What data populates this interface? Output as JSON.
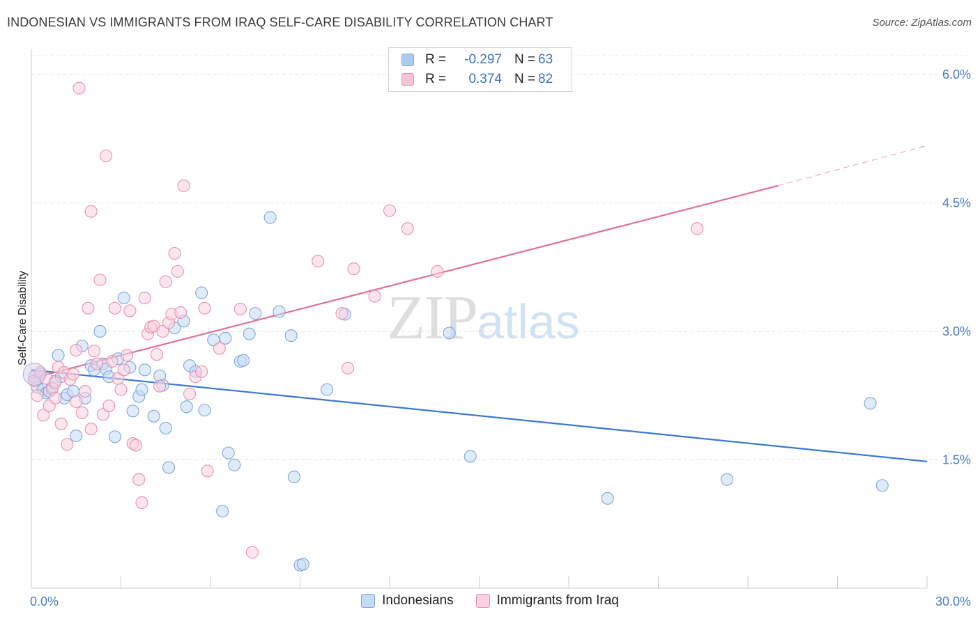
{
  "title": "INDONESIAN VS IMMIGRANTS FROM IRAQ SELF-CARE DISABILITY CORRELATION CHART",
  "source": "Source: ZipAtlas.com",
  "watermark": {
    "zip": "ZIP",
    "atlas": "atlas"
  },
  "legend": {
    "rows": [
      {
        "r_label": "R =",
        "r_value": "-0.297",
        "n_label": "N =",
        "n_value": "63",
        "color": "#aecbf2",
        "border": "#7aa6e0"
      },
      {
        "r_label": "R =",
        "r_value": "0.374",
        "n_label": "N =",
        "n_value": "82",
        "color": "#f7c4d4",
        "border": "#e98fae"
      }
    ]
  },
  "bottom_legend": [
    {
      "label": "Indonesians",
      "color": "#c6dbf6",
      "border": "#7aa6e0"
    },
    {
      "label": "Immigrants from Iraq",
      "color": "#fad2df",
      "border": "#e98fae"
    }
  ],
  "chart_data": {
    "type": "scatter",
    "ylabel": "Self-Care Disability",
    "x_tick_labels": [
      "0.0%",
      "30.0%"
    ],
    "y_tick_labels": [
      "1.5%",
      "3.0%",
      "4.5%",
      "6.0%"
    ],
    "xlim": [
      0,
      30
    ],
    "ylim": [
      0,
      6.3
    ],
    "y_ticks": [
      1.5,
      3.0,
      4.5,
      6.0
    ],
    "grid": "horizontal dashed",
    "legend_placement": "top-center",
    "series": [
      {
        "name": "Indonesians",
        "color": "#7aa6e0",
        "fill": "#c6dbf6",
        "trend": {
          "x": [
            0,
            30
          ],
          "y": [
            2.55,
            1.48
          ],
          "color": "#3a78d0"
        },
        "points": [
          [
            0.1,
            2.47
          ],
          [
            0.2,
            2.35
          ],
          [
            0.3,
            2.5
          ],
          [
            0.4,
            2.32
          ],
          [
            0.5,
            2.28
          ],
          [
            0.6,
            2.3
          ],
          [
            0.7,
            2.35
          ],
          [
            0.8,
            2.42
          ],
          [
            0.9,
            2.72
          ],
          [
            1.0,
            2.47
          ],
          [
            1.1,
            2.22
          ],
          [
            1.2,
            2.26
          ],
          [
            1.4,
            2.3
          ],
          [
            1.5,
            1.78
          ],
          [
            1.7,
            2.83
          ],
          [
            1.8,
            2.22
          ],
          [
            2.0,
            2.6
          ],
          [
            2.1,
            2.55
          ],
          [
            2.3,
            3.0
          ],
          [
            2.4,
            2.62
          ],
          [
            2.5,
            2.56
          ],
          [
            2.6,
            2.47
          ],
          [
            2.8,
            1.77
          ],
          [
            2.9,
            2.68
          ],
          [
            3.1,
            3.39
          ],
          [
            3.3,
            2.58
          ],
          [
            3.4,
            2.07
          ],
          [
            3.6,
            2.24
          ],
          [
            3.7,
            2.32
          ],
          [
            3.8,
            2.55
          ],
          [
            4.1,
            2.01
          ],
          [
            4.3,
            2.48
          ],
          [
            4.4,
            2.37
          ],
          [
            4.5,
            1.87
          ],
          [
            4.6,
            1.41
          ],
          [
            4.8,
            3.04
          ],
          [
            5.1,
            3.12
          ],
          [
            5.2,
            2.12
          ],
          [
            5.3,
            2.6
          ],
          [
            5.5,
            2.53
          ],
          [
            5.7,
            3.45
          ],
          [
            5.8,
            2.08
          ],
          [
            6.1,
            2.9
          ],
          [
            6.4,
            0.9
          ],
          [
            6.5,
            2.92
          ],
          [
            6.6,
            1.58
          ],
          [
            6.8,
            1.44
          ],
          [
            7.0,
            2.65
          ],
          [
            7.1,
            2.66
          ],
          [
            7.3,
            2.97
          ],
          [
            7.5,
            3.21
          ],
          [
            8.0,
            4.33
          ],
          [
            8.3,
            3.23
          ],
          [
            8.7,
            2.95
          ],
          [
            8.8,
            1.3
          ],
          [
            9.0,
            0.27
          ],
          [
            9.1,
            0.28
          ],
          [
            9.9,
            2.32
          ],
          [
            10.5,
            3.2
          ],
          [
            14.0,
            2.98
          ],
          [
            14.7,
            1.54
          ],
          [
            19.3,
            1.05
          ],
          [
            23.3,
            1.27
          ],
          [
            28.1,
            2.16
          ],
          [
            28.5,
            1.2
          ]
        ]
      },
      {
        "name": "Immigrants from Iraq",
        "color": "#e98fae",
        "fill": "#fad2df",
        "trend": {
          "x": [
            0,
            25
          ],
          "y": [
            2.45,
            4.7
          ],
          "color": "#e07098",
          "dashed_to": [
            30,
            5.17
          ]
        },
        "points": [
          [
            0.1,
            2.42
          ],
          [
            0.2,
            2.25
          ],
          [
            0.3,
            2.52
          ],
          [
            0.4,
            2.02
          ],
          [
            0.5,
            2.45
          ],
          [
            0.6,
            2.13
          ],
          [
            0.7,
            2.33
          ],
          [
            0.8,
            2.22
          ],
          [
            0.9,
            2.58
          ],
          [
            1.0,
            1.92
          ],
          [
            1.1,
            2.52
          ],
          [
            1.2,
            1.68
          ],
          [
            1.3,
            2.44
          ],
          [
            1.4,
            2.5
          ],
          [
            1.5,
            2.18
          ],
          [
            1.6,
            5.84
          ],
          [
            1.7,
            2.05
          ],
          [
            1.8,
            2.3
          ],
          [
            1.9,
            3.27
          ],
          [
            2.0,
            1.86
          ],
          [
            2.1,
            2.77
          ],
          [
            2.2,
            2.62
          ],
          [
            2.3,
            3.6
          ],
          [
            2.4,
            2.03
          ],
          [
            2.5,
            5.05
          ],
          [
            2.6,
            2.13
          ],
          [
            2.7,
            2.65
          ],
          [
            2.8,
            3.27
          ],
          [
            2.9,
            2.45
          ],
          [
            3.0,
            2.32
          ],
          [
            3.1,
            2.55
          ],
          [
            3.2,
            2.72
          ],
          [
            3.3,
            3.24
          ],
          [
            3.4,
            1.69
          ],
          [
            3.5,
            1.67
          ],
          [
            3.6,
            1.27
          ],
          [
            3.7,
            1.0
          ],
          [
            3.8,
            3.39
          ],
          [
            3.9,
            2.97
          ],
          [
            4.0,
            3.05
          ],
          [
            4.1,
            3.06
          ],
          [
            4.2,
            2.73
          ],
          [
            4.3,
            2.36
          ],
          [
            4.4,
            3.0
          ],
          [
            4.5,
            3.58
          ],
          [
            4.6,
            3.1
          ],
          [
            4.7,
            3.2
          ],
          [
            4.8,
            3.91
          ],
          [
            4.9,
            3.7
          ],
          [
            5.0,
            3.22
          ],
          [
            5.1,
            4.7
          ],
          [
            5.3,
            2.27
          ],
          [
            5.5,
            2.47
          ],
          [
            5.7,
            2.53
          ],
          [
            5.8,
            3.27
          ],
          [
            5.9,
            1.37
          ],
          [
            6.3,
            2.8
          ],
          [
            7.0,
            3.26
          ],
          [
            7.4,
            0.42
          ],
          [
            9.6,
            3.82
          ],
          [
            10.4,
            3.21
          ],
          [
            10.6,
            2.57
          ],
          [
            10.8,
            3.73
          ],
          [
            11.5,
            3.41
          ],
          [
            12.0,
            4.41
          ],
          [
            12.6,
            4.2
          ],
          [
            13.6,
            3.7
          ],
          [
            22.3,
            4.2
          ],
          [
            2.0,
            4.4
          ],
          [
            1.5,
            2.78
          ],
          [
            0.8,
            2.4
          ]
        ]
      }
    ]
  }
}
